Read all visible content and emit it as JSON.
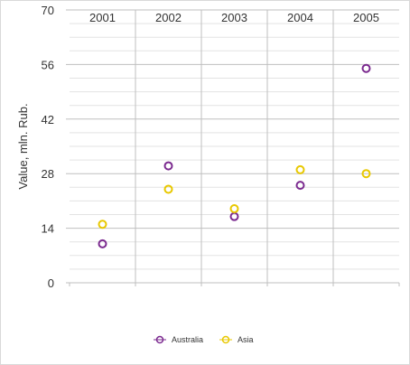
{
  "chart_data": {
    "type": "scatter",
    "title": "",
    "xlabel": "",
    "ylabel": "Value, mln. Rub.",
    "categories": [
      "2001",
      "2002",
      "2003",
      "2004",
      "2005"
    ],
    "category_axis_position": "top",
    "ylim": [
      0,
      70
    ],
    "yticks": [
      0,
      14,
      28,
      42,
      56,
      70
    ],
    "minor_grid_step": 3.5,
    "grid": true,
    "legend": "bottom",
    "series": [
      {
        "name": "Australia",
        "color": "#7b2a8f",
        "values": [
          10,
          30,
          17,
          25,
          55
        ]
      },
      {
        "name": "Asia",
        "color": "#e8c800",
        "values": [
          15,
          24,
          19,
          29,
          28
        ]
      }
    ]
  }
}
